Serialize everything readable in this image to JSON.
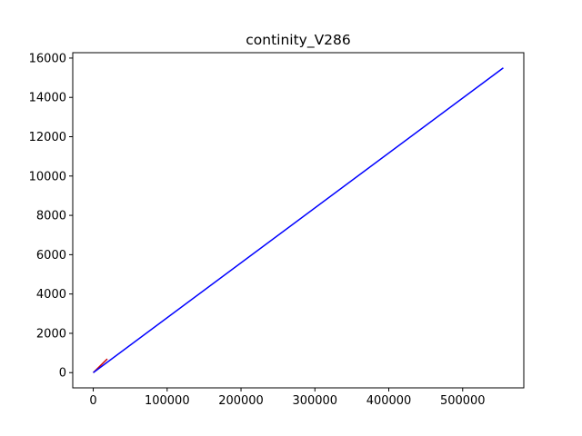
{
  "chart_data": {
    "type": "line",
    "title": "continity_V286",
    "xlabel": "",
    "ylabel": "",
    "xlim": [
      -27750,
      582750
    ],
    "ylim": [
      -774,
      16274
    ],
    "x_ticks": [
      0,
      100000,
      200000,
      300000,
      400000,
      500000
    ],
    "x_tick_labels": [
      "0",
      "100000",
      "200000",
      "300000",
      "400000",
      "500000"
    ],
    "y_ticks": [
      0,
      2000,
      4000,
      6000,
      8000,
      10000,
      12000,
      14000,
      16000
    ],
    "y_tick_labels": [
      "0",
      "2000",
      "4000",
      "6000",
      "8000",
      "10000",
      "12000",
      "14000",
      "16000"
    ],
    "grid": false,
    "series": [
      {
        "color": "#cc0000",
        "x": [
          0,
          19000
        ],
        "y": [
          0,
          700
        ]
      },
      {
        "color": "#0000ff",
        "x": [
          0,
          555000
        ],
        "y": [
          0,
          15500
        ]
      }
    ]
  }
}
